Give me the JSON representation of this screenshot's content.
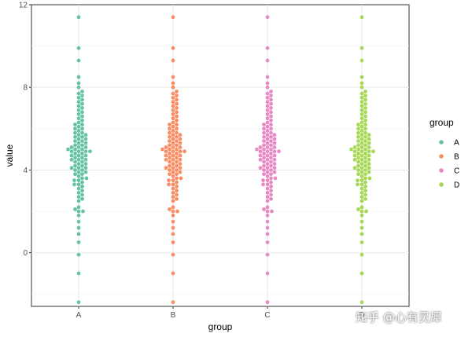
{
  "chart_data": {
    "type": "scatter",
    "subtype": "beeswarm",
    "title": "",
    "xlabel": "group",
    "ylabel": "value",
    "categories": [
      "A",
      "B",
      "C",
      "D"
    ],
    "ylim": [
      -2.6,
      12
    ],
    "yticks": [
      0,
      4,
      8,
      12
    ],
    "grid": true,
    "legend": {
      "title": "group",
      "position": "right",
      "entries": [
        "A",
        "B",
        "C",
        "D"
      ]
    },
    "colors": {
      "A": "#66c2a5",
      "B": "#fc8d62",
      "C": "#e78ac3",
      "D": "#a6d854"
    },
    "values": [
      -2.4,
      -1.0,
      -0.1,
      0.5,
      0.9,
      1.2,
      1.5,
      1.8,
      2.0,
      2.0,
      2.1,
      2.2,
      2.5,
      2.6,
      2.7,
      2.8,
      2.9,
      3.0,
      3.1,
      3.2,
      3.3,
      3.3,
      3.4,
      3.5,
      3.5,
      3.6,
      3.6,
      3.7,
      3.8,
      3.8,
      3.9,
      3.9,
      4.0,
      4.0,
      4.1,
      4.1,
      4.1,
      4.2,
      4.2,
      4.3,
      4.3,
      4.4,
      4.4,
      4.5,
      4.5,
      4.5,
      4.6,
      4.6,
      4.7,
      4.7,
      4.7,
      4.8,
      4.8,
      4.9,
      4.9,
      4.9,
      4.9,
      5.0,
      5.0,
      5.0,
      5.1,
      5.1,
      5.1,
      5.2,
      5.2,
      5.3,
      5.3,
      5.4,
      5.4,
      5.5,
      5.5,
      5.6,
      5.6,
      5.7,
      5.7,
      5.8,
      5.8,
      5.9,
      6.0,
      6.0,
      6.1,
      6.2,
      6.2,
      6.3,
      6.4,
      6.5,
      6.6,
      6.7,
      6.8,
      6.9,
      7.0,
      7.1,
      7.2,
      7.3,
      7.4,
      7.5,
      7.6,
      7.7,
      7.8,
      8.0,
      8.2,
      8.5,
      9.3,
      9.9,
      11.4
    ],
    "watermark": "知乎 @心有灵犀"
  }
}
